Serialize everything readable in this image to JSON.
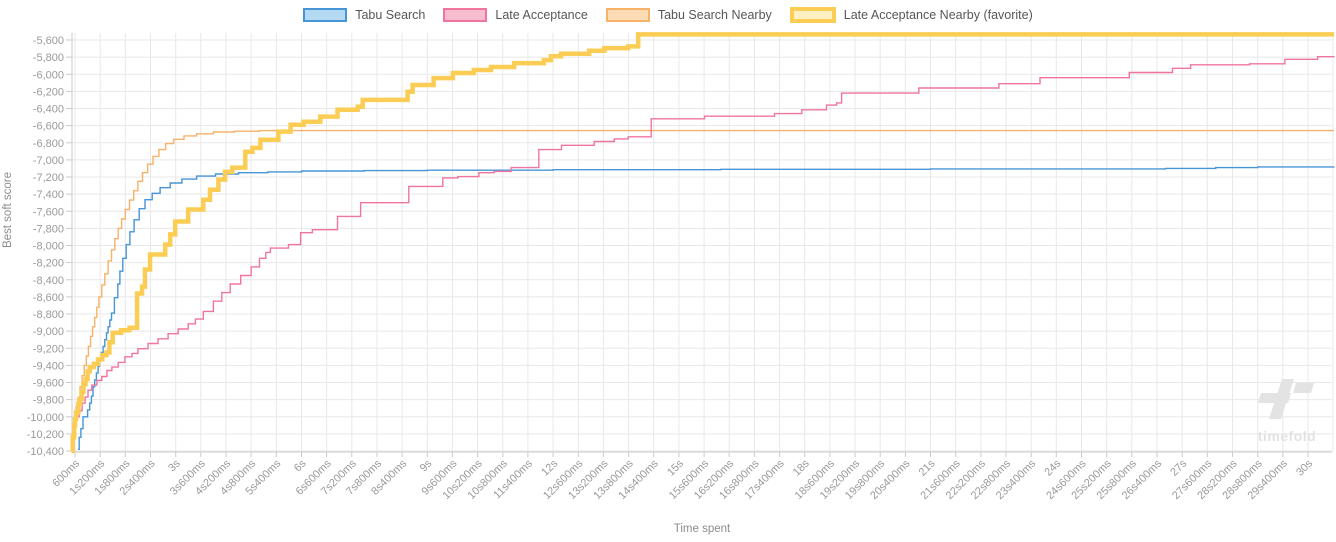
{
  "colors": {
    "background": "#ffffff",
    "grid": "#e8e8e8",
    "axis": "#cbcbcb",
    "tick_text": "#9a9a9a",
    "axis_title": "#8c8c8c",
    "legend_text": "#575757",
    "watermark": "#e3e3e3"
  },
  "watermark": {
    "text": "timefold"
  },
  "chart_data": {
    "type": "line",
    "subtype": "step-after",
    "xlabel": "Time spent",
    "ylabel": "Best soft score",
    "xlim_seconds": [
      0.5,
      30.65
    ],
    "ylim": [
      -10400,
      -5600
    ],
    "grid": true,
    "legend_position": "top",
    "x_ticks": [
      [
        "600ms",
        0.6
      ],
      [
        "1s200ms",
        1.2
      ],
      [
        "1s800ms",
        1.8
      ],
      [
        "2s400ms",
        2.4
      ],
      [
        "3s",
        3
      ],
      [
        "3s600ms",
        3.6
      ],
      [
        "4s200ms",
        4.2
      ],
      [
        "4s800ms",
        4.8
      ],
      [
        "5s400ms",
        5.4
      ],
      [
        "6s",
        6
      ],
      [
        "6s600ms",
        6.6
      ],
      [
        "7s200ms",
        7.2
      ],
      [
        "7s800ms",
        7.8
      ],
      [
        "8s400ms",
        8.4
      ],
      [
        "9s",
        9
      ],
      [
        "9s600ms",
        9.6
      ],
      [
        "10s200ms",
        10.2
      ],
      [
        "10s800ms",
        10.8
      ],
      [
        "11s400ms",
        11.4
      ],
      [
        "12s",
        12
      ],
      [
        "12s600ms",
        12.6
      ],
      [
        "13s200ms",
        13.2
      ],
      [
        "13s800ms",
        13.8
      ],
      [
        "14s400ms",
        14.4
      ],
      [
        "15s",
        15
      ],
      [
        "15s600ms",
        15.6
      ],
      [
        "16s200ms",
        16.2
      ],
      [
        "16s800ms",
        16.8
      ],
      [
        "17s400ms",
        17.4
      ],
      [
        "18s",
        18
      ],
      [
        "18s600ms",
        18.6
      ],
      [
        "19s200ms",
        19.2
      ],
      [
        "19s800ms",
        19.8
      ],
      [
        "20s400ms",
        20.4
      ],
      [
        "21s",
        21
      ],
      [
        "21s600ms",
        21.6
      ],
      [
        "22s200ms",
        22.2
      ],
      [
        "22s800ms",
        22.8
      ],
      [
        "23s400ms",
        23.4
      ],
      [
        "24s",
        24
      ],
      [
        "24s600ms",
        24.6
      ],
      [
        "25s200ms",
        25.2
      ],
      [
        "25s800ms",
        25.8
      ],
      [
        "26s400ms",
        26.4
      ],
      [
        "27s",
        27
      ],
      [
        "27s600ms",
        27.6
      ],
      [
        "28s200ms",
        28.2
      ],
      [
        "28s800ms",
        28.8
      ],
      [
        "29s400ms",
        29.4
      ],
      [
        "30s",
        30
      ]
    ],
    "y_ticks": [
      [
        "-5,600",
        -5600
      ],
      [
        "-5,800",
        -5800
      ],
      [
        "-6,000",
        -6000
      ],
      [
        "-6,200",
        -6200
      ],
      [
        "-6,400",
        -6400
      ],
      [
        "-6,600",
        -6600
      ],
      [
        "-6,800",
        -6800
      ],
      [
        "-7,000",
        -7000
      ],
      [
        "-7,200",
        -7200
      ],
      [
        "-7,400",
        -7400
      ],
      [
        "-7,600",
        -7600
      ],
      [
        "-7,800",
        -7800
      ],
      [
        "-8,000",
        -8000
      ],
      [
        "-8,200",
        -8200
      ],
      [
        "-8,400",
        -8400
      ],
      [
        "-8,600",
        -8600
      ],
      [
        "-8,800",
        -8800
      ],
      [
        "-9,000",
        -9000
      ],
      [
        "-9,200",
        -9200
      ],
      [
        "-9,400",
        -9400
      ],
      [
        "-9,600",
        -9600
      ],
      [
        "-9,800",
        -9800
      ],
      [
        "-10,000",
        -10000
      ],
      [
        "-10,200",
        -10200
      ],
      [
        "-10,400",
        -10400
      ]
    ],
    "series": [
      {
        "name": "Tabu Search Nearby",
        "slug": "tabu-search-nearby",
        "color": "#f8b169",
        "fill": "#fbdcb4",
        "width": 1.4,
        "favorite": false,
        "points": [
          [
            0.53,
            -10380
          ],
          [
            0.56,
            -10180
          ],
          [
            0.59,
            -10020
          ],
          [
            0.63,
            -9880
          ],
          [
            0.67,
            -9780
          ],
          [
            0.72,
            -9650
          ],
          [
            0.77,
            -9520
          ],
          [
            0.82,
            -9400
          ],
          [
            0.87,
            -9290
          ],
          [
            0.92,
            -9180
          ],
          [
            0.97,
            -9060
          ],
          [
            1.02,
            -8950
          ],
          [
            1.07,
            -8840
          ],
          [
            1.12,
            -8720
          ],
          [
            1.17,
            -8600
          ],
          [
            1.24,
            -8460
          ],
          [
            1.31,
            -8330
          ],
          [
            1.39,
            -8180
          ],
          [
            1.47,
            -8050
          ],
          [
            1.55,
            -7920
          ],
          [
            1.63,
            -7800
          ],
          [
            1.71,
            -7690
          ],
          [
            1.8,
            -7580
          ],
          [
            1.9,
            -7470
          ],
          [
            2.0,
            -7360
          ],
          [
            2.1,
            -7250
          ],
          [
            2.21,
            -7150
          ],
          [
            2.33,
            -7050
          ],
          [
            2.46,
            -6960
          ],
          [
            2.6,
            -6880
          ],
          [
            2.76,
            -6810
          ],
          [
            2.95,
            -6760
          ],
          [
            3.2,
            -6720
          ],
          [
            3.5,
            -6695
          ],
          [
            3.9,
            -6675
          ],
          [
            4.4,
            -6665
          ],
          [
            5.0,
            -6658
          ],
          [
            30.62,
            -6658
          ]
        ]
      },
      {
        "name": "Tabu Search",
        "slug": "tabu-search",
        "color": "#4795d6",
        "fill": "#b4d9f2",
        "width": 1.4,
        "favorite": false,
        "points": [
          [
            0.67,
            -10380
          ],
          [
            0.7,
            -10240
          ],
          [
            0.74,
            -10140
          ],
          [
            0.79,
            -10000
          ],
          [
            0.9,
            -9920
          ],
          [
            0.95,
            -9840
          ],
          [
            0.99,
            -9760
          ],
          [
            1.03,
            -9650
          ],
          [
            1.07,
            -9570
          ],
          [
            1.11,
            -9490
          ],
          [
            1.15,
            -9410
          ],
          [
            1.19,
            -9330
          ],
          [
            1.23,
            -9250
          ],
          [
            1.27,
            -9180
          ],
          [
            1.31,
            -9100
          ],
          [
            1.35,
            -9020
          ],
          [
            1.39,
            -8950
          ],
          [
            1.43,
            -8870
          ],
          [
            1.47,
            -8790
          ],
          [
            1.54,
            -8610
          ],
          [
            1.62,
            -8450
          ],
          [
            1.67,
            -8300
          ],
          [
            1.74,
            -8150
          ],
          [
            1.82,
            -7990
          ],
          [
            1.91,
            -7840
          ],
          [
            2.01,
            -7700
          ],
          [
            2.13,
            -7570
          ],
          [
            2.27,
            -7465
          ],
          [
            2.44,
            -7390
          ],
          [
            2.63,
            -7325
          ],
          [
            2.87,
            -7270
          ],
          [
            3.15,
            -7225
          ],
          [
            3.5,
            -7190
          ],
          [
            3.95,
            -7165
          ],
          [
            4.5,
            -7150
          ],
          [
            5.2,
            -7140
          ],
          [
            6.0,
            -7130
          ],
          [
            7.5,
            -7125
          ],
          [
            9.0,
            -7120
          ],
          [
            12.0,
            -7115
          ],
          [
            16.0,
            -7110
          ],
          [
            21.0,
            -7105
          ],
          [
            26.6,
            -7100
          ],
          [
            27.8,
            -7090
          ],
          [
            28.8,
            -7082
          ],
          [
            30.62,
            -7080
          ]
        ]
      },
      {
        "name": "Late Acceptance",
        "slug": "late-acceptance",
        "color": "#f0759e",
        "fill": "#f8bccf",
        "width": 1.4,
        "favorite": false,
        "points": [
          [
            0.55,
            -10350
          ],
          [
            0.57,
            -10200
          ],
          [
            0.59,
            -10090
          ],
          [
            0.63,
            -10000
          ],
          [
            0.7,
            -9930
          ],
          [
            0.77,
            -9840
          ],
          [
            0.84,
            -9770
          ],
          [
            0.91,
            -9690
          ],
          [
            1.0,
            -9630
          ],
          [
            1.12,
            -9575
          ],
          [
            1.24,
            -9530
          ],
          [
            1.36,
            -9460
          ],
          [
            1.48,
            -9420
          ],
          [
            1.63,
            -9365
          ],
          [
            1.79,
            -9300
          ],
          [
            1.96,
            -9260
          ],
          [
            2.1,
            -9205
          ],
          [
            2.34,
            -9145
          ],
          [
            2.58,
            -9090
          ],
          [
            2.82,
            -9030
          ],
          [
            3.06,
            -8975
          ],
          [
            3.3,
            -8915
          ],
          [
            3.47,
            -8860
          ],
          [
            3.66,
            -8770
          ],
          [
            3.9,
            -8650
          ],
          [
            4.1,
            -8550
          ],
          [
            4.3,
            -8450
          ],
          [
            4.55,
            -8350
          ],
          [
            4.8,
            -8250
          ],
          [
            5.0,
            -8150
          ],
          [
            5.15,
            -8080
          ],
          [
            5.26,
            -8030
          ],
          [
            5.69,
            -7990
          ],
          [
            5.98,
            -7850
          ],
          [
            6.26,
            -7815
          ],
          [
            6.86,
            -7660
          ],
          [
            7.41,
            -7500
          ],
          [
            8.56,
            -7310
          ],
          [
            9.37,
            -7210
          ],
          [
            9.73,
            -7195
          ],
          [
            10.23,
            -7150
          ],
          [
            10.59,
            -7135
          ],
          [
            11.0,
            -7090
          ],
          [
            11.66,
            -6880
          ],
          [
            12.2,
            -6830
          ],
          [
            12.98,
            -6785
          ],
          [
            13.46,
            -6755
          ],
          [
            13.79,
            -6730
          ],
          [
            14.34,
            -6520
          ],
          [
            15.61,
            -6490
          ],
          [
            17.28,
            -6460
          ],
          [
            17.93,
            -6415
          ],
          [
            18.52,
            -6360
          ],
          [
            18.76,
            -6335
          ],
          [
            18.88,
            -6220
          ],
          [
            20.72,
            -6160
          ],
          [
            22.63,
            -6110
          ],
          [
            23.61,
            -6040
          ],
          [
            25.74,
            -5980
          ],
          [
            26.77,
            -5930
          ],
          [
            27.2,
            -5890
          ],
          [
            28.61,
            -5878
          ],
          [
            29.45,
            -5825
          ],
          [
            30.23,
            -5795
          ],
          [
            30.62,
            -5790
          ]
        ]
      },
      {
        "name": "Late Acceptance Nearby (favorite)",
        "slug": "late-acceptance-nearby",
        "color": "#fbcd55",
        "fill": "#fdf0c2",
        "width": 4.5,
        "favorite": true,
        "points": [
          [
            0.52,
            -10400
          ],
          [
            0.545,
            -10240
          ],
          [
            0.58,
            -10100
          ],
          [
            0.6,
            -10030
          ],
          [
            0.625,
            -9950
          ],
          [
            0.68,
            -9850
          ],
          [
            0.72,
            -9790
          ],
          [
            0.76,
            -9710
          ],
          [
            0.8,
            -9620
          ],
          [
            0.85,
            -9560
          ],
          [
            0.9,
            -9470
          ],
          [
            0.95,
            -9420
          ],
          [
            1.05,
            -9380
          ],
          [
            1.15,
            -9330
          ],
          [
            1.25,
            -9280
          ],
          [
            1.35,
            -9250
          ],
          [
            1.42,
            -9130
          ],
          [
            1.5,
            -9020
          ],
          [
            1.7,
            -8990
          ],
          [
            1.9,
            -8960
          ],
          [
            2.08,
            -8560
          ],
          [
            2.2,
            -8480
          ],
          [
            2.27,
            -8280
          ],
          [
            2.39,
            -8105
          ],
          [
            2.75,
            -7990
          ],
          [
            2.87,
            -7870
          ],
          [
            2.99,
            -7720
          ],
          [
            3.3,
            -7580
          ],
          [
            3.66,
            -7465
          ],
          [
            3.82,
            -7350
          ],
          [
            4.02,
            -7230
          ],
          [
            4.18,
            -7140
          ],
          [
            4.35,
            -7090
          ],
          [
            4.66,
            -6905
          ],
          [
            4.83,
            -6860
          ],
          [
            5.02,
            -6765
          ],
          [
            5.45,
            -6670
          ],
          [
            5.74,
            -6590
          ],
          [
            6.05,
            -6555
          ],
          [
            6.45,
            -6495
          ],
          [
            6.86,
            -6415
          ],
          [
            7.34,
            -6380
          ],
          [
            7.46,
            -6300
          ],
          [
            8.53,
            -6205
          ],
          [
            8.65,
            -6125
          ],
          [
            9.15,
            -6045
          ],
          [
            9.61,
            -5985
          ],
          [
            10.11,
            -5950
          ],
          [
            10.52,
            -5915
          ],
          [
            11.07,
            -5870
          ],
          [
            11.78,
            -5835
          ],
          [
            11.95,
            -5790
          ],
          [
            12.19,
            -5760
          ],
          [
            12.86,
            -5725
          ],
          [
            13.22,
            -5695
          ],
          [
            13.79,
            -5675
          ],
          [
            14.03,
            -5535
          ],
          [
            30.62,
            -5535
          ]
        ]
      }
    ]
  }
}
